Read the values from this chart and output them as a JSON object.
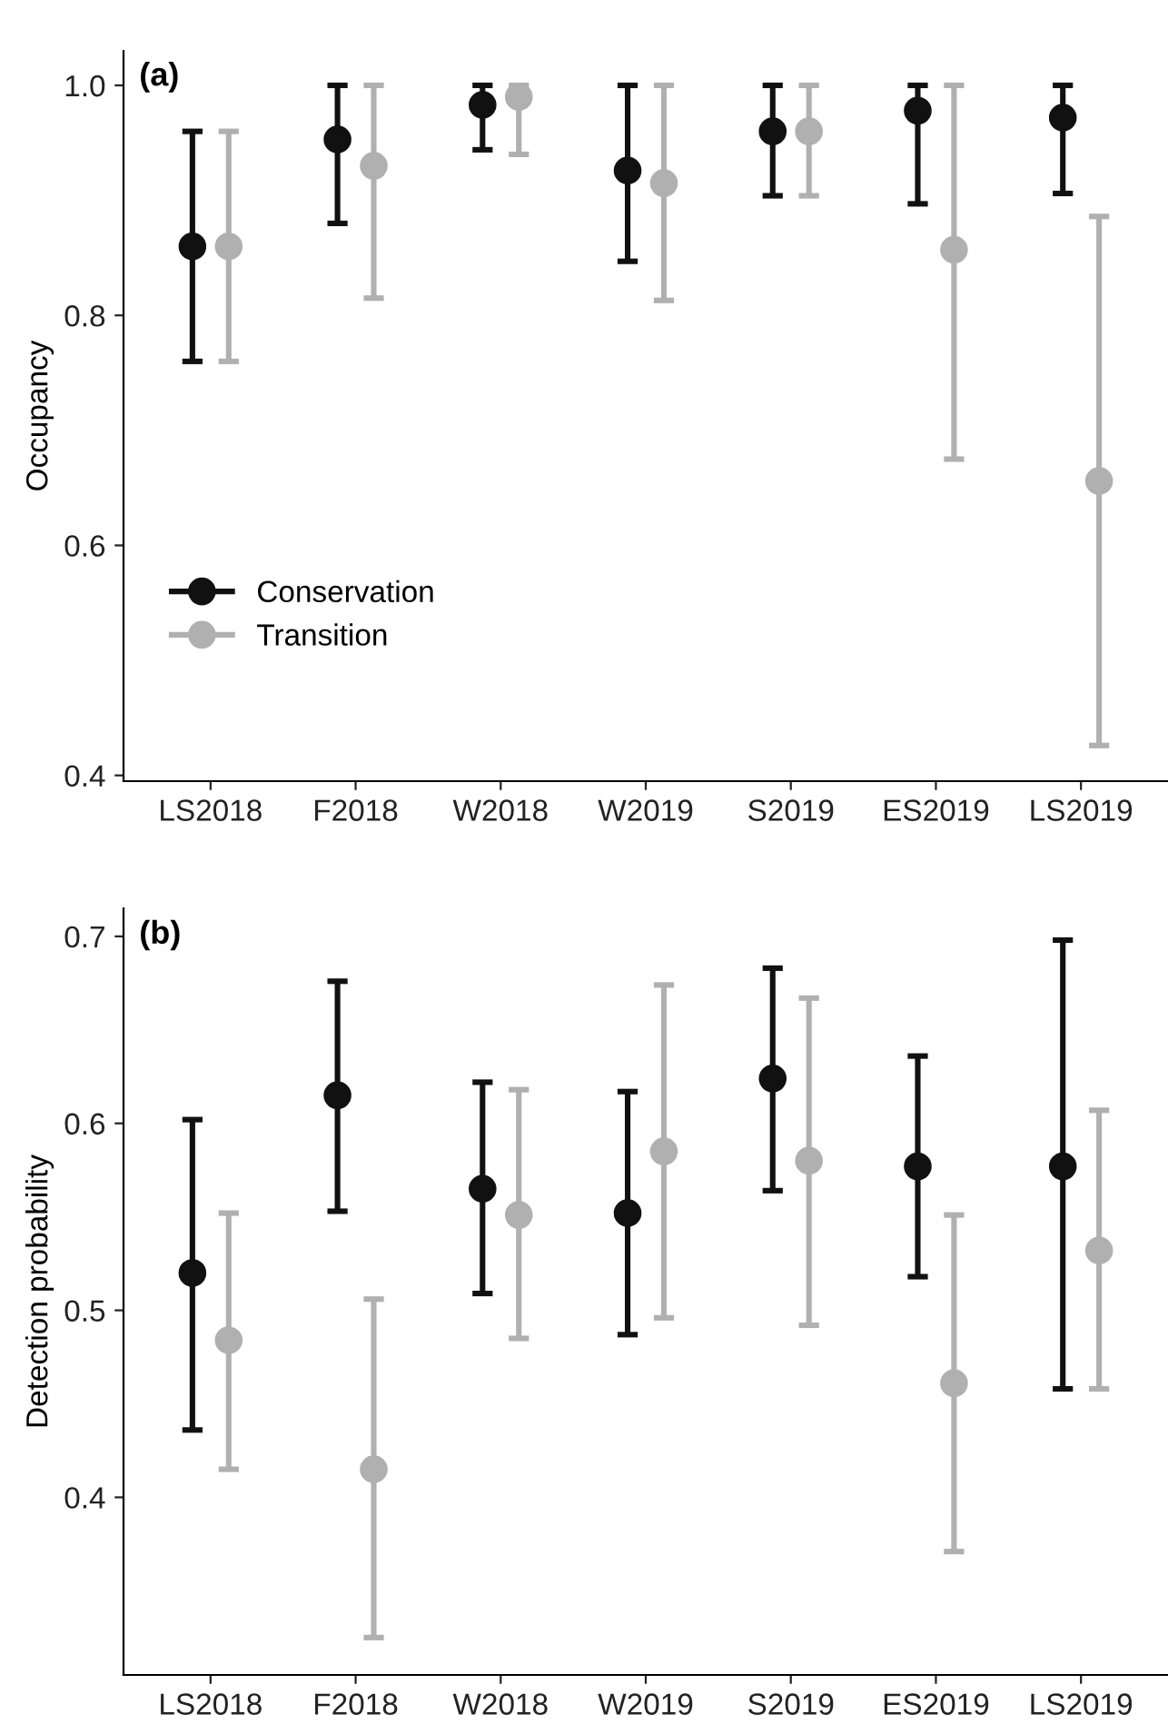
{
  "chart_data": [
    {
      "type": "scatter",
      "ylabel": "Occupancy",
      "annotations": [
        "(a)"
      ],
      "categories": [
        "LS2018",
        "F2018",
        "W2018",
        "W2019",
        "S2019",
        "ES2019",
        "LS2019"
      ],
      "ylim": [
        0.395,
        1.03
      ],
      "yticks": [
        0.4,
        0.6,
        0.8,
        {
          "value": 1,
          "label": "1.0"
        }
      ],
      "grid": false,
      "legend": "bottom left",
      "marker": "circle",
      "series": [
        {
          "name": "Conservation",
          "color": "#111111",
          "values": [
            0.86,
            0.953,
            0.983,
            0.926,
            0.96,
            0.978,
            0.972
          ],
          "errors": [
            [
              0.76,
              0.96
            ],
            [
              0.88,
              1.0
            ],
            [
              0.944,
              1.0
            ],
            [
              0.847,
              1.0
            ],
            [
              0.904,
              1.0
            ],
            [
              0.897,
              1.0
            ],
            [
              0.906,
              1.0
            ]
          ]
        },
        {
          "name": "Transition",
          "color": "#b0b0b0",
          "values": [
            0.86,
            0.93,
            0.99,
            0.915,
            0.96,
            0.857,
            0.656
          ],
          "errors": [
            [
              0.76,
              0.96
            ],
            [
              0.815,
              1.0
            ],
            [
              0.94,
              1.0
            ],
            [
              0.813,
              1.0
            ],
            [
              0.904,
              1.0
            ],
            [
              0.675,
              1.0
            ],
            [
              0.426,
              0.886
            ]
          ]
        }
      ]
    },
    {
      "type": "scatter",
      "ylabel": "Detection probability",
      "annotations": [
        "(b)"
      ],
      "categories": [
        "LS2018",
        "F2018",
        "W2018",
        "W2019",
        "S2019",
        "ES2019",
        "LS2019"
      ],
      "ylim": [
        0.305,
        0.715
      ],
      "yticks": [
        0.4,
        0.5,
        0.6,
        0.7
      ],
      "grid": false,
      "marker": "circle",
      "series": [
        {
          "color": "#111111",
          "values": [
            0.52,
            0.615,
            0.565,
            0.552,
            0.624,
            0.577,
            0.577
          ],
          "errors": [
            [
              0.436,
              0.602
            ],
            [
              0.553,
              0.676
            ],
            [
              0.509,
              0.622
            ],
            [
              0.487,
              0.617
            ],
            [
              0.564,
              0.683
            ],
            [
              0.518,
              0.636
            ],
            [
              0.458,
              0.698
            ]
          ]
        },
        {
          "color": "#b0b0b0",
          "values": [
            0.484,
            0.415,
            0.551,
            0.585,
            0.58,
            0.461,
            0.532
          ],
          "errors": [
            [
              0.415,
              0.552
            ],
            [
              0.325,
              0.506
            ],
            [
              0.485,
              0.618
            ],
            [
              0.496,
              0.674
            ],
            [
              0.492,
              0.667
            ],
            [
              0.371,
              0.551
            ],
            [
              0.458,
              0.607
            ]
          ]
        }
      ]
    }
  ]
}
